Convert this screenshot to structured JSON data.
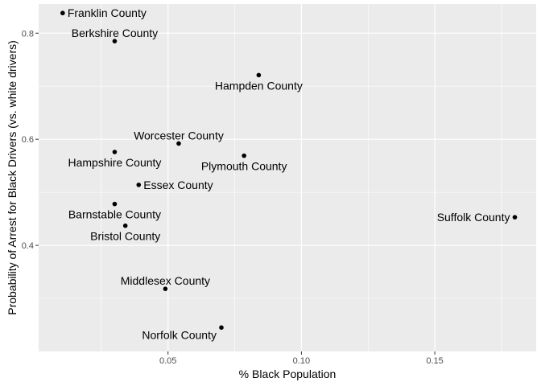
{
  "chart_data": {
    "type": "scatter",
    "title": "",
    "xlabel": "% Black Population",
    "ylabel": "Probability of Arrest for Black Drivers (vs. white drivers)",
    "xlim": [
      0.0015,
      0.188
    ],
    "ylim": [
      0.2,
      0.855
    ],
    "xticks": [
      {
        "value": 0.05,
        "label": "0.05"
      },
      {
        "value": 0.1,
        "label": "0.10"
      },
      {
        "value": 0.15,
        "label": "0.15"
      }
    ],
    "yticks": [
      {
        "value": 0.4,
        "label": "0.4"
      },
      {
        "value": 0.6,
        "label": "0.6"
      },
      {
        "value": 0.8,
        "label": "0.8"
      }
    ],
    "grid": true,
    "background": "#ebebeb",
    "grid_color": "#ffffff",
    "point_color": "#000000",
    "points": [
      {
        "name": "Franklin County",
        "x": 0.0105,
        "y": 0.838,
        "label_pos": "right"
      },
      {
        "name": "Berkshire County",
        "x": 0.03,
        "y": 0.785,
        "label_pos": "above"
      },
      {
        "name": "Hampden County",
        "x": 0.084,
        "y": 0.721,
        "label_pos": "below"
      },
      {
        "name": "Worcester County",
        "x": 0.054,
        "y": 0.592,
        "label_pos": "above"
      },
      {
        "name": "Hampshire County",
        "x": 0.03,
        "y": 0.576,
        "label_pos": "below"
      },
      {
        "name": "Plymouth County",
        "x": 0.0785,
        "y": 0.569,
        "label_pos": "below"
      },
      {
        "name": "Essex County",
        "x": 0.039,
        "y": 0.514,
        "label_pos": "right"
      },
      {
        "name": "Barnstable County",
        "x": 0.03,
        "y": 0.478,
        "label_pos": "below"
      },
      {
        "name": "Bristol County",
        "x": 0.034,
        "y": 0.437,
        "label_pos": "below"
      },
      {
        "name": "Suffolk County",
        "x": 0.18,
        "y": 0.453,
        "label_pos": "left"
      },
      {
        "name": "Middlesex County",
        "x": 0.049,
        "y": 0.318,
        "label_pos": "above"
      },
      {
        "name": "Norfolk County",
        "x": 0.07,
        "y": 0.245,
        "label_pos": "below-left"
      }
    ]
  }
}
